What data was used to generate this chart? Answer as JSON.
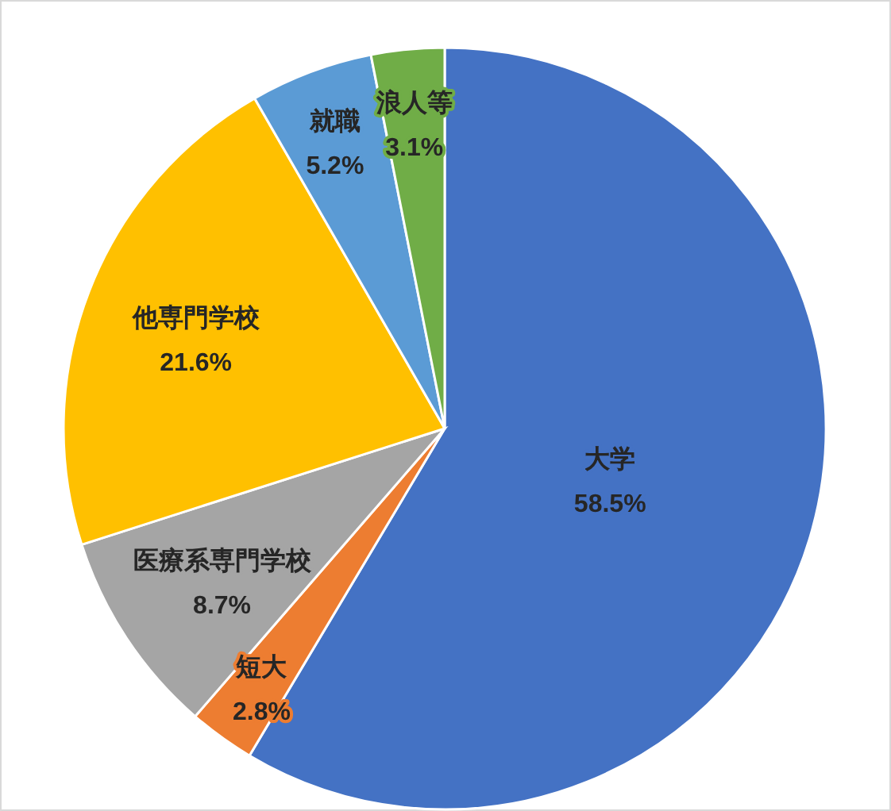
{
  "chart_data": {
    "type": "pie",
    "categories": [
      "大学",
      "短大",
      "医療系専門学校",
      "他専門学校",
      "就職",
      "浪人等"
    ],
    "values": [
      58.5,
      2.8,
      8.7,
      21.6,
      5.2,
      3.1
    ],
    "value_labels": [
      "58.5%",
      "2.8%",
      "8.7%",
      "21.6%",
      "5.2%",
      "3.1%"
    ],
    "colors": [
      "#4472c4",
      "#ed7d31",
      "#a5a5a5",
      "#ffc000",
      "#5b9bd5",
      "#70ad47"
    ],
    "legend": false
  }
}
